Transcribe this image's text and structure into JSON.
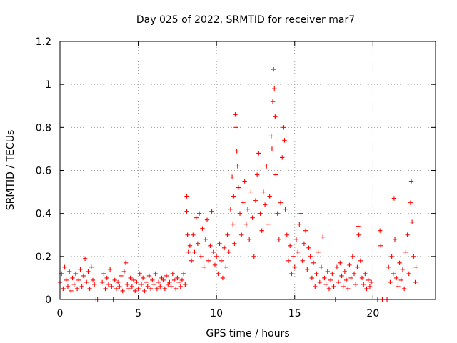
{
  "chart_data": {
    "type": "scatter",
    "title": "Day 025 of 2022, SRMTID for receiver mar7",
    "xlabel": "GPS time / hours",
    "ylabel": "SRMTID / TECUs",
    "xlim": [
      0,
      24
    ],
    "ylim": [
      0,
      1.2
    ],
    "x_ticks": [
      0,
      5,
      10,
      15,
      20
    ],
    "x_tick_labels": [
      "0",
      "5",
      "10",
      "15",
      "20"
    ],
    "y_ticks": [
      0,
      0.2,
      0.4,
      0.6,
      0.8,
      1.0,
      1.2
    ],
    "y_tick_labels": [
      "0",
      "0.2",
      "0.4",
      "0.6",
      "0.8",
      "1",
      "1.2"
    ],
    "grid": true,
    "marker": "+",
    "color": "#ff0000",
    "series": [
      {
        "name": "SRMTID",
        "points": [
          [
            0.0,
            0.08
          ],
          [
            0.1,
            0.12
          ],
          [
            0.2,
            0.05
          ],
          [
            0.3,
            0.15
          ],
          [
            0.4,
            0.09
          ],
          [
            0.5,
            0.06
          ],
          [
            0.6,
            0.13
          ],
          [
            0.7,
            0.04
          ],
          [
            0.8,
            0.1
          ],
          [
            0.9,
            0.07
          ],
          [
            1.0,
            0.12
          ],
          [
            1.1,
            0.05
          ],
          [
            1.2,
            0.09
          ],
          [
            1.3,
            0.14
          ],
          [
            1.4,
            0.06
          ],
          [
            1.5,
            0.11
          ],
          [
            1.6,
            0.19
          ],
          [
            1.7,
            0.08
          ],
          [
            1.8,
            0.13
          ],
          [
            1.9,
            0.05
          ],
          [
            2.0,
            0.15
          ],
          [
            2.1,
            0.09
          ],
          [
            2.2,
            0.07
          ],
          [
            2.3,
            0.0
          ],
          [
            2.4,
            0.0
          ],
          [
            2.7,
            0.08
          ],
          [
            2.8,
            0.12
          ],
          [
            2.9,
            0.05
          ],
          [
            3.0,
            0.1
          ],
          [
            3.1,
            0.07
          ],
          [
            3.2,
            0.14
          ],
          [
            3.3,
            0.06
          ],
          [
            3.4,
            0.0
          ],
          [
            3.5,
            0.09
          ],
          [
            3.6,
            0.05
          ],
          [
            3.7,
            0.08
          ],
          [
            3.8,
            0.06
          ],
          [
            3.9,
            0.11
          ],
          [
            4.0,
            0.04
          ],
          [
            4.1,
            0.13
          ],
          [
            4.2,
            0.17
          ],
          [
            4.3,
            0.07
          ],
          [
            4.4,
            0.05
          ],
          [
            4.5,
            0.1
          ],
          [
            4.6,
            0.06
          ],
          [
            4.7,
            0.09
          ],
          [
            4.8,
            0.04
          ],
          [
            4.9,
            0.08
          ],
          [
            5.0,
            0.05
          ],
          [
            5.1,
            0.12
          ],
          [
            5.2,
            0.07
          ],
          [
            5.3,
            0.1
          ],
          [
            5.4,
            0.04
          ],
          [
            5.5,
            0.08
          ],
          [
            5.6,
            0.06
          ],
          [
            5.7,
            0.11
          ],
          [
            5.8,
            0.05
          ],
          [
            5.9,
            0.09
          ],
          [
            6.0,
            0.07
          ],
          [
            6.1,
            0.12
          ],
          [
            6.2,
            0.05
          ],
          [
            6.3,
            0.08
          ],
          [
            6.4,
            0.06
          ],
          [
            6.5,
            0.1
          ],
          [
            6.6,
            0.09
          ],
          [
            6.7,
            0.05
          ],
          [
            6.8,
            0.11
          ],
          [
            6.9,
            0.07
          ],
          [
            7.0,
            0.08
          ],
          [
            7.1,
            0.06
          ],
          [
            7.2,
            0.12
          ],
          [
            7.3,
            0.09
          ],
          [
            7.4,
            0.05
          ],
          [
            7.5,
            0.1
          ],
          [
            7.6,
            0.08
          ],
          [
            7.7,
            0.06
          ],
          [
            7.8,
            0.09
          ],
          [
            7.9,
            0.12
          ],
          [
            8.0,
            0.07
          ],
          [
            8.1,
            0.48
          ],
          [
            8.1,
            0.41
          ],
          [
            8.15,
            0.3
          ],
          [
            8.2,
            0.22
          ],
          [
            8.3,
            0.25
          ],
          [
            8.4,
            0.18
          ],
          [
            8.5,
            0.3
          ],
          [
            8.6,
            0.22
          ],
          [
            8.7,
            0.38
          ],
          [
            8.8,
            0.26
          ],
          [
            8.9,
            0.4
          ],
          [
            9.0,
            0.2
          ],
          [
            9.1,
            0.33
          ],
          [
            9.2,
            0.15
          ],
          [
            9.3,
            0.28
          ],
          [
            9.4,
            0.37
          ],
          [
            9.5,
            0.18
          ],
          [
            9.6,
            0.25
          ],
          [
            9.7,
            0.41
          ],
          [
            9.8,
            0.22
          ],
          [
            9.9,
            0.16
          ],
          [
            10.0,
            0.2
          ],
          [
            10.1,
            0.12
          ],
          [
            10.2,
            0.26
          ],
          [
            10.3,
            0.18
          ],
          [
            10.4,
            0.1
          ],
          [
            10.5,
            0.24
          ],
          [
            10.6,
            0.15
          ],
          [
            10.7,
            0.3
          ],
          [
            10.8,
            0.22
          ],
          [
            10.9,
            0.42
          ],
          [
            11.0,
            0.57
          ],
          [
            11.05,
            0.35
          ],
          [
            11.1,
            0.48
          ],
          [
            11.15,
            0.26
          ],
          [
            11.2,
            0.86
          ],
          [
            11.25,
            0.8
          ],
          [
            11.3,
            0.69
          ],
          [
            11.35,
            0.62
          ],
          [
            11.4,
            0.52
          ],
          [
            11.5,
            0.4
          ],
          [
            11.6,
            0.3
          ],
          [
            11.7,
            0.45
          ],
          [
            11.8,
            0.55
          ],
          [
            11.9,
            0.35
          ],
          [
            12.0,
            0.42
          ],
          [
            12.1,
            0.28
          ],
          [
            12.2,
            0.5
          ],
          [
            12.3,
            0.38
          ],
          [
            12.4,
            0.2
          ],
          [
            12.5,
            0.46
          ],
          [
            12.6,
            0.58
          ],
          [
            12.7,
            0.68
          ],
          [
            12.8,
            0.4
          ],
          [
            12.9,
            0.32
          ],
          [
            13.0,
            0.5
          ],
          [
            13.1,
            0.44
          ],
          [
            13.2,
            0.62
          ],
          [
            13.3,
            0.35
          ],
          [
            13.4,
            0.48
          ],
          [
            13.5,
            0.76
          ],
          [
            13.55,
            0.7
          ],
          [
            13.6,
            0.92
          ],
          [
            13.65,
            1.07
          ],
          [
            13.7,
            0.98
          ],
          [
            13.75,
            0.85
          ],
          [
            13.8,
            0.58
          ],
          [
            13.9,
            0.4
          ],
          [
            14.0,
            0.28
          ],
          [
            14.1,
            0.45
          ],
          [
            14.2,
            0.66
          ],
          [
            14.3,
            0.8
          ],
          [
            14.35,
            0.74
          ],
          [
            14.4,
            0.42
          ],
          [
            14.5,
            0.3
          ],
          [
            14.6,
            0.18
          ],
          [
            14.7,
            0.25
          ],
          [
            14.8,
            0.12
          ],
          [
            14.9,
            0.2
          ],
          [
            15.0,
            0.15
          ],
          [
            15.1,
            0.28
          ],
          [
            15.2,
            0.22
          ],
          [
            15.3,
            0.35
          ],
          [
            15.4,
            0.4
          ],
          [
            15.5,
            0.18
          ],
          [
            15.6,
            0.26
          ],
          [
            15.7,
            0.32
          ],
          [
            15.8,
            0.14
          ],
          [
            15.9,
            0.24
          ],
          [
            16.0,
            0.2
          ],
          [
            16.1,
            0.1
          ],
          [
            16.2,
            0.17
          ],
          [
            16.3,
            0.06
          ],
          [
            16.4,
            0.12
          ],
          [
            16.5,
            0.22
          ],
          [
            16.6,
            0.08
          ],
          [
            16.7,
            0.15
          ],
          [
            16.8,
            0.29
          ],
          [
            16.9,
            0.1
          ],
          [
            17.0,
            0.07
          ],
          [
            17.1,
            0.13
          ],
          [
            17.2,
            0.05
          ],
          [
            17.3,
            0.09
          ],
          [
            17.4,
            0.12
          ],
          [
            17.5,
            0.06
          ],
          [
            17.6,
            0.0
          ],
          [
            17.7,
            0.15
          ],
          [
            17.8,
            0.08
          ],
          [
            17.9,
            0.17
          ],
          [
            18.0,
            0.11
          ],
          [
            18.1,
            0.06
          ],
          [
            18.2,
            0.13
          ],
          [
            18.3,
            0.09
          ],
          [
            18.4,
            0.05
          ],
          [
            18.5,
            0.16
          ],
          [
            18.6,
            0.1
          ],
          [
            18.7,
            0.2
          ],
          [
            18.8,
            0.12
          ],
          [
            18.9,
            0.07
          ],
          [
            19.0,
            0.15
          ],
          [
            19.05,
            0.34
          ],
          [
            19.1,
            0.3
          ],
          [
            19.2,
            0.18
          ],
          [
            19.3,
            0.1
          ],
          [
            19.4,
            0.07
          ],
          [
            19.5,
            0.12
          ],
          [
            19.6,
            0.05
          ],
          [
            19.7,
            0.09
          ],
          [
            19.8,
            0.06
          ],
          [
            19.9,
            0.08
          ],
          [
            20.3,
            0.0
          ],
          [
            20.45,
            0.32
          ],
          [
            20.5,
            0.25
          ],
          [
            20.6,
            0.0
          ],
          [
            20.9,
            0.0
          ],
          [
            21.0,
            0.15
          ],
          [
            21.1,
            0.08
          ],
          [
            21.2,
            0.2
          ],
          [
            21.3,
            0.12
          ],
          [
            21.35,
            0.47
          ],
          [
            21.4,
            0.28
          ],
          [
            21.5,
            0.1
          ],
          [
            21.6,
            0.06
          ],
          [
            21.7,
            0.17
          ],
          [
            21.8,
            0.09
          ],
          [
            21.9,
            0.14
          ],
          [
            22.0,
            0.05
          ],
          [
            22.1,
            0.22
          ],
          [
            22.2,
            0.3
          ],
          [
            22.3,
            0.12
          ],
          [
            22.4,
            0.45
          ],
          [
            22.45,
            0.55
          ],
          [
            22.5,
            0.36
          ],
          [
            22.6,
            0.2
          ],
          [
            22.7,
            0.08
          ],
          [
            22.75,
            0.15
          ]
        ]
      }
    ]
  }
}
